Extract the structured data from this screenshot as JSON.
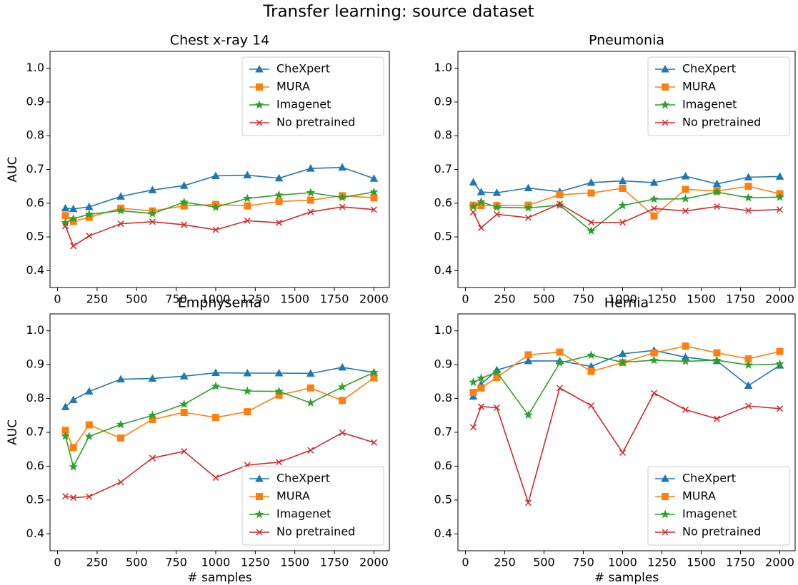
{
  "title": "Transfer learning: source dataset",
  "chart_data": [
    {
      "type": "line",
      "title": "Chest x-ray 14",
      "ylabel": "AUC",
      "legend": "upper right",
      "x": [
        50,
        100,
        200,
        400,
        600,
        800,
        1000,
        1200,
        1400,
        1600,
        1800,
        2000
      ],
      "xlim": [
        -47.5,
        2097.5
      ],
      "ylim": [
        0.35,
        1.05
      ],
      "xticks": [
        0,
        250,
        500,
        750,
        1000,
        1250,
        1500,
        1750,
        2000
      ],
      "yticks": [
        0.4,
        0.5,
        0.6,
        0.7,
        0.8,
        0.9,
        {
          "value": 1,
          "label": "1.0"
        }
      ],
      "series": [
        {
          "name": "CheXpert",
          "color": "#1f77b4",
          "marker": "^",
          "values": [
            0.585,
            0.583,
            0.589,
            0.62,
            0.639,
            0.652,
            0.681,
            0.683,
            0.674,
            0.703,
            0.706,
            0.673
          ]
        },
        {
          "name": "MURA",
          "color": "#ff7f0e",
          "marker": "s",
          "values": [
            0.563,
            0.546,
            0.558,
            0.585,
            0.577,
            0.592,
            0.596,
            0.592,
            0.605,
            0.609,
            0.622,
            0.616
          ]
        },
        {
          "name": "Imagenet",
          "color": "#2ca02c",
          "marker": "*",
          "values": [
            0.542,
            0.554,
            0.567,
            0.578,
            0.569,
            0.603,
            0.588,
            0.614,
            0.624,
            0.631,
            0.617,
            0.633
          ]
        },
        {
          "name": "No pretrained",
          "color": "#d62728",
          "marker": "x",
          "values": [
            0.532,
            0.473,
            0.503,
            0.539,
            0.545,
            0.536,
            0.521,
            0.548,
            0.542,
            0.574,
            0.589,
            0.581
          ]
        }
      ]
    },
    {
      "type": "line",
      "title": "Pneumonia",
      "legend": "upper right",
      "x": [
        50,
        100,
        200,
        400,
        600,
        800,
        1000,
        1200,
        1400,
        1600,
        1800,
        2000
      ],
      "xlim": [
        -47.5,
        2097.5
      ],
      "ylim": [
        0.35,
        1.05
      ],
      "xticks": [
        0,
        250,
        500,
        750,
        1000,
        1250,
        1500,
        1750,
        2000
      ],
      "yticks": [
        0.4,
        0.5,
        0.6,
        0.7,
        0.8,
        0.9,
        {
          "value": 1,
          "label": "1.0"
        }
      ],
      "series": [
        {
          "name": "CheXpert",
          "color": "#1f77b4",
          "marker": "^",
          "values": [
            0.662,
            0.633,
            0.631,
            0.645,
            0.634,
            0.661,
            0.666,
            0.661,
            0.68,
            0.657,
            0.677,
            0.679
          ]
        },
        {
          "name": "MURA",
          "color": "#ff7f0e",
          "marker": "s",
          "values": [
            0.594,
            0.593,
            0.593,
            0.594,
            0.625,
            0.63,
            0.644,
            0.562,
            0.641,
            0.636,
            0.65,
            0.628
          ]
        },
        {
          "name": "Imagenet",
          "color": "#2ca02c",
          "marker": "*",
          "values": [
            0.59,
            0.604,
            0.588,
            0.586,
            0.594,
            0.518,
            0.593,
            0.612,
            0.613,
            0.633,
            0.616,
            0.618
          ]
        },
        {
          "name": "No pretrained",
          "color": "#d62728",
          "marker": "x",
          "values": [
            0.573,
            0.527,
            0.567,
            0.557,
            0.598,
            0.543,
            0.543,
            0.584,
            0.577,
            0.59,
            0.578,
            0.581
          ]
        }
      ]
    },
    {
      "type": "line",
      "title": "Emphysema",
      "ylabel": "AUC",
      "xlabel": "# samples",
      "legend": "lower right",
      "x": [
        50,
        100,
        200,
        400,
        600,
        800,
        1000,
        1200,
        1400,
        1600,
        1800,
        2000
      ],
      "xlim": [
        -47.5,
        2097.5
      ],
      "ylim": [
        0.35,
        1.05
      ],
      "xticks": [
        0,
        250,
        500,
        750,
        1000,
        1250,
        1500,
        1750,
        2000
      ],
      "yticks": [
        0.4,
        0.5,
        0.6,
        0.7,
        0.8,
        0.9,
        {
          "value": 1,
          "label": "1.0"
        }
      ],
      "series": [
        {
          "name": "CheXpert",
          "color": "#1f77b4",
          "marker": "^",
          "values": [
            0.775,
            0.796,
            0.821,
            0.857,
            0.859,
            0.866,
            0.876,
            0.875,
            0.875,
            0.874,
            0.892,
            0.877
          ]
        },
        {
          "name": "MURA",
          "color": "#ff7f0e",
          "marker": "s",
          "values": [
            0.706,
            0.655,
            0.722,
            0.683,
            0.738,
            0.759,
            0.744,
            0.761,
            0.81,
            0.831,
            0.794,
            0.861
          ]
        },
        {
          "name": "Imagenet",
          "color": "#2ca02c",
          "marker": "*",
          "values": [
            0.689,
            0.598,
            0.688,
            0.723,
            0.75,
            0.783,
            0.836,
            0.822,
            0.821,
            0.787,
            0.834,
            0.877
          ]
        },
        {
          "name": "No pretrained",
          "color": "#d62728",
          "marker": "x",
          "values": [
            0.511,
            0.507,
            0.51,
            0.553,
            0.624,
            0.644,
            0.566,
            0.603,
            0.612,
            0.647,
            0.699,
            0.67
          ]
        }
      ]
    },
    {
      "type": "line",
      "title": "Hernia",
      "xlabel": "# samples",
      "legend": "lower right",
      "x": [
        50,
        100,
        200,
        400,
        600,
        800,
        1000,
        1200,
        1400,
        1600,
        1800,
        2000
      ],
      "xlim": [
        -47.5,
        2097.5
      ],
      "ylim": [
        0.35,
        1.05
      ],
      "xticks": [
        0,
        250,
        500,
        750,
        1000,
        1250,
        1500,
        1750,
        2000
      ],
      "yticks": [
        0.4,
        0.5,
        0.6,
        0.7,
        0.8,
        0.9,
        {
          "value": 1,
          "label": "1.0"
        }
      ],
      "series": [
        {
          "name": "CheXpert",
          "color": "#1f77b4",
          "marker": "^",
          "values": [
            0.806,
            0.842,
            0.884,
            0.911,
            0.911,
            0.895,
            0.932,
            0.942,
            0.922,
            0.911,
            0.838,
            0.898
          ]
        },
        {
          "name": "MURA",
          "color": "#ff7f0e",
          "marker": "s",
          "values": [
            0.818,
            0.831,
            0.862,
            0.929,
            0.937,
            0.88,
            0.906,
            0.935,
            0.955,
            0.935,
            0.917,
            0.939
          ]
        },
        {
          "name": "Imagenet",
          "color": "#2ca02c",
          "marker": "*",
          "values": [
            0.848,
            0.86,
            0.878,
            0.751,
            0.905,
            0.928,
            0.907,
            0.913,
            0.91,
            0.913,
            0.899,
            0.902
          ]
        },
        {
          "name": "No pretrained",
          "color": "#d62728",
          "marker": "x",
          "values": [
            0.715,
            0.776,
            0.773,
            0.492,
            0.831,
            0.779,
            0.64,
            0.816,
            0.767,
            0.74,
            0.778,
            0.77
          ]
        }
      ]
    }
  ]
}
